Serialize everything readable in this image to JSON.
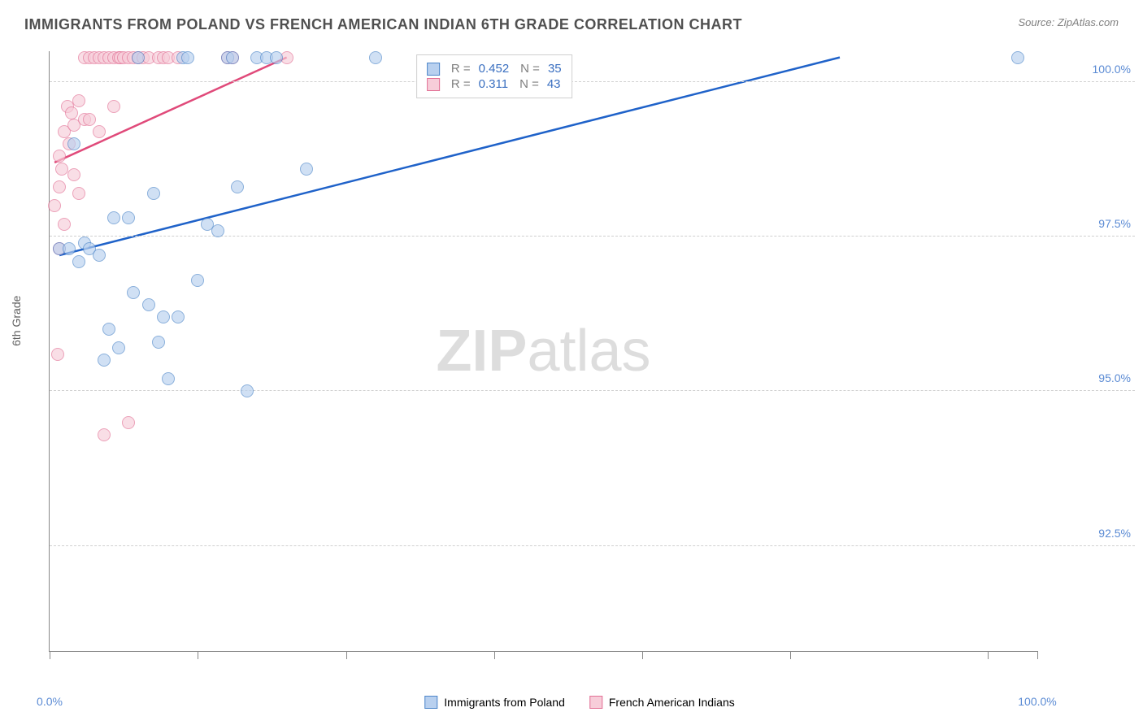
{
  "header": {
    "title": "IMMIGRANTS FROM POLAND VS FRENCH AMERICAN INDIAN 6TH GRADE CORRELATION CHART",
    "source": "Source: ZipAtlas.com"
  },
  "axes": {
    "ylabel": "6th Grade",
    "xlim": [
      0,
      100
    ],
    "ylim": [
      90.8,
      100.5
    ],
    "ytick_positions": [
      92.5,
      95.0,
      97.5,
      100.0
    ],
    "ytick_labels": [
      "92.5%",
      "95.0%",
      "97.5%",
      "100.0%"
    ],
    "xtick_positions": [
      0,
      15,
      30,
      45,
      60,
      75,
      95,
      100
    ],
    "xtick_labels_left": "0.0%",
    "xtick_labels_right": "100.0%",
    "grid_color": "#d0d0d0",
    "axis_color": "#888888",
    "tick_label_color": "#5b8bd4"
  },
  "series": {
    "blue": {
      "label": "Immigrants from Poland",
      "fill": "#b8d0ef",
      "stroke": "#4d86c9",
      "R": "0.452",
      "N": "35",
      "points": [
        [
          1,
          97.3
        ],
        [
          2,
          97.3
        ],
        [
          2.5,
          99.0
        ],
        [
          3,
          97.1
        ],
        [
          3.5,
          97.4
        ],
        [
          4,
          97.3
        ],
        [
          5,
          97.2
        ],
        [
          5.5,
          95.5
        ],
        [
          6,
          96.0
        ],
        [
          6.5,
          97.8
        ],
        [
          7,
          95.7
        ],
        [
          8,
          97.8
        ],
        [
          8.5,
          96.6
        ],
        [
          9,
          100.4
        ],
        [
          10,
          96.4
        ],
        [
          10.5,
          98.2
        ],
        [
          11,
          95.8
        ],
        [
          11.5,
          96.2
        ],
        [
          12,
          95.2
        ],
        [
          13,
          96.2
        ],
        [
          13.5,
          100.4
        ],
        [
          14,
          100.4
        ],
        [
          15,
          96.8
        ],
        [
          16,
          97.7
        ],
        [
          17,
          97.6
        ],
        [
          18,
          100.4
        ],
        [
          18.5,
          100.4
        ],
        [
          19,
          98.3
        ],
        [
          20,
          95.0
        ],
        [
          21,
          100.4
        ],
        [
          22,
          100.4
        ],
        [
          23,
          100.4
        ],
        [
          26,
          98.6
        ],
        [
          33,
          100.4
        ],
        [
          98,
          100.4
        ]
      ],
      "trend": {
        "x1": 1,
        "y1": 97.2,
        "x2": 80,
        "y2": 100.4,
        "color": "#1f62c9",
        "width": 2.5
      }
    },
    "pink": {
      "label": "French American Indians",
      "fill": "#f7cdd9",
      "stroke": "#e27095",
      "R": "0.311",
      "N": "43",
      "points": [
        [
          0.5,
          98.0
        ],
        [
          1,
          98.3
        ],
        [
          1,
          98.8
        ],
        [
          1.2,
          98.6
        ],
        [
          1.5,
          99.2
        ],
        [
          1.8,
          99.6
        ],
        [
          1,
          97.3
        ],
        [
          1.5,
          97.7
        ],
        [
          2,
          99.0
        ],
        [
          2.2,
          99.5
        ],
        [
          2.5,
          98.5
        ],
        [
          2.5,
          99.3
        ],
        [
          3,
          98.2
        ],
        [
          3,
          99.7
        ],
        [
          3.5,
          100.4
        ],
        [
          3.5,
          99.4
        ],
        [
          4,
          99.4
        ],
        [
          4,
          100.4
        ],
        [
          4.5,
          100.4
        ],
        [
          5,
          99.2
        ],
        [
          5,
          100.4
        ],
        [
          5.5,
          100.4
        ],
        [
          6,
          100.4
        ],
        [
          6.5,
          100.4
        ],
        [
          6.5,
          99.6
        ],
        [
          7,
          100.4
        ],
        [
          7.2,
          100.4
        ],
        [
          7.5,
          100.4
        ],
        [
          8,
          100.4
        ],
        [
          8.5,
          100.4
        ],
        [
          9,
          100.4
        ],
        [
          9.5,
          100.4
        ],
        [
          10,
          100.4
        ],
        [
          11,
          100.4
        ],
        [
          11.5,
          100.4
        ],
        [
          12,
          100.4
        ],
        [
          13,
          100.4
        ],
        [
          18,
          100.4
        ],
        [
          18.5,
          100.4
        ],
        [
          24,
          100.4
        ],
        [
          5.5,
          94.3
        ],
        [
          8,
          94.5
        ],
        [
          0.8,
          95.6
        ]
      ],
      "trend": {
        "x1": 0.5,
        "y1": 98.7,
        "x2": 24,
        "y2": 100.4,
        "color": "#e04a7a",
        "width": 2.5
      }
    }
  },
  "legend_top": {
    "r_label": "R =",
    "n_label": "N ="
  },
  "watermark": {
    "zip": "ZIP",
    "atlas": "atlas",
    "color": "#dddddd"
  }
}
